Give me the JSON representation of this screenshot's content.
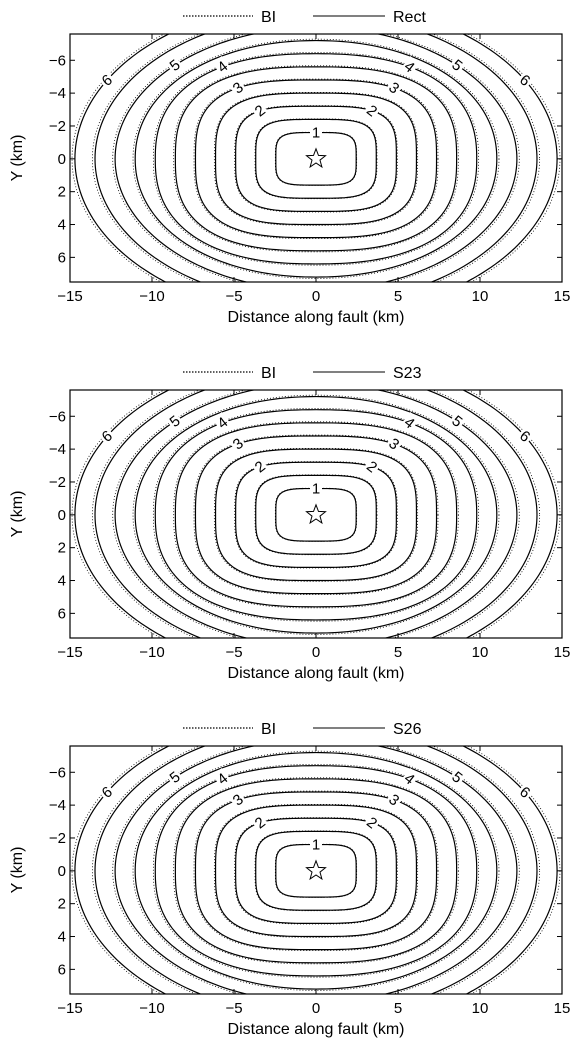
{
  "chart_data": [
    {
      "type": "contour",
      "legend": [
        {
          "name": "BI",
          "style": "dotted"
        },
        {
          "name": "Rect",
          "style": "solid"
        }
      ],
      "legend_position": "top-center",
      "xlabel": "Distance along fault (km)",
      "ylabel": "Y (km)",
      "xlim": [
        -15,
        15
      ],
      "ylim": [
        7.5,
        -7.6
      ],
      "x_ticks": [
        -15,
        -10,
        -5,
        0,
        5,
        10,
        15
      ],
      "x_tick_labels": [
        "−15",
        "−10",
        "−5",
        "0",
        "5",
        "10",
        "15"
      ],
      "y_ticks": [
        -6,
        -4,
        -2,
        0,
        2,
        4,
        6
      ],
      "y_tick_labels": [
        "−6",
        "−4",
        "−2",
        "0",
        "2",
        "4",
        "6"
      ],
      "y_reversed": true,
      "contour_levels": [
        1,
        1.5,
        2,
        2.5,
        3,
        3.5,
        4,
        4.5,
        5,
        5.5,
        6
      ],
      "contour_labels": [
        "1",
        "2",
        "3",
        "4",
        "5",
        "6"
      ],
      "hypocenter": {
        "x": 0,
        "y": 0,
        "marker": "star"
      }
    },
    {
      "type": "contour",
      "legend": [
        {
          "name": "BI",
          "style": "dotted"
        },
        {
          "name": "S23",
          "style": "solid"
        }
      ],
      "legend_position": "top-center",
      "xlabel": "Distance along fault (km)",
      "ylabel": "Y (km)",
      "xlim": [
        -15,
        15
      ],
      "ylim": [
        7.5,
        -7.6
      ],
      "x_ticks": [
        -15,
        -10,
        -5,
        0,
        5,
        10,
        15
      ],
      "x_tick_labels": [
        "−15",
        "−10",
        "−5",
        "0",
        "5",
        "10",
        "15"
      ],
      "y_ticks": [
        -6,
        -4,
        -2,
        0,
        2,
        4,
        6
      ],
      "y_tick_labels": [
        "−6",
        "−4",
        "−2",
        "0",
        "2",
        "4",
        "6"
      ],
      "y_reversed": true,
      "contour_levels": [
        1,
        1.5,
        2,
        2.5,
        3,
        3.5,
        4,
        4.5,
        5,
        5.5,
        6
      ],
      "contour_labels": [
        "1",
        "2",
        "3",
        "4",
        "5",
        "6"
      ],
      "hypocenter": {
        "x": 0,
        "y": 0,
        "marker": "star"
      }
    },
    {
      "type": "contour",
      "legend": [
        {
          "name": "BI",
          "style": "dotted"
        },
        {
          "name": "S26",
          "style": "solid"
        }
      ],
      "legend_position": "top-center",
      "xlabel": "Distance along fault (km)",
      "ylabel": "Y (km)",
      "xlim": [
        -15,
        15
      ],
      "ylim": [
        7.5,
        -7.6
      ],
      "x_ticks": [
        -15,
        -10,
        -5,
        0,
        5,
        10,
        15
      ],
      "x_tick_labels": [
        "−15",
        "−10",
        "−5",
        "0",
        "5",
        "10",
        "15"
      ],
      "y_ticks": [
        -6,
        -4,
        -2,
        0,
        2,
        4,
        6
      ],
      "y_tick_labels": [
        "−6",
        "−4",
        "−2",
        "0",
        "2",
        "4",
        "6"
      ],
      "y_reversed": true,
      "contour_levels": [
        1,
        1.5,
        2,
        2.5,
        3,
        3.5,
        4,
        4.5,
        5,
        5.5,
        6
      ],
      "contour_labels": [
        "1",
        "2",
        "3",
        "4",
        "5",
        "6"
      ],
      "hypocenter": {
        "x": 0,
        "y": 0,
        "marker": "star"
      }
    }
  ]
}
